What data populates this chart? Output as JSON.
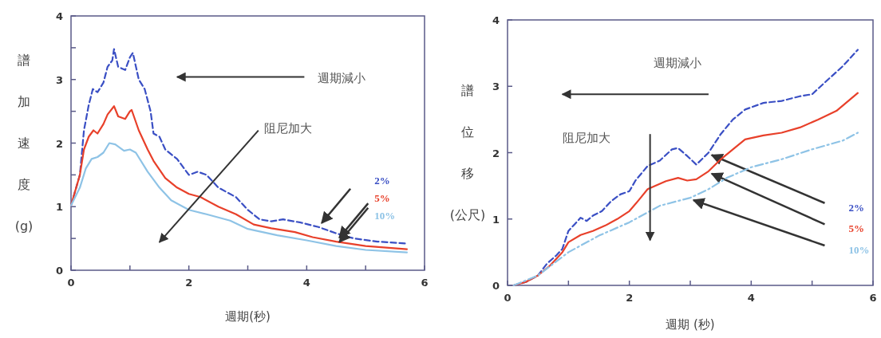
{
  "chart_data": [
    {
      "type": "line",
      "ylabel": "譜加速度(g)",
      "xlabel": "週期(秒)",
      "annotations": [
        "週期減小",
        "阻尼加大"
      ],
      "xlim": [
        0,
        6
      ],
      "ylim": [
        0,
        4
      ],
      "xticks": [
        0,
        {
          "value": 1,
          "label": null
        },
        2,
        {
          "value": 3,
          "label": null
        },
        4,
        {
          "value": 5,
          "label": null
        },
        6
      ],
      "yticks": [
        0,
        {
          "value": 0.5,
          "label": null
        },
        1,
        {
          "value": 1.5,
          "label": null
        },
        2,
        {
          "value": 2.5,
          "label": null
        },
        3,
        {
          "value": 3.5,
          "label": null
        },
        4
      ],
      "grid": false,
      "legend": false,
      "marker": "none",
      "series": [
        {
          "name": "2%",
          "color": "#3a4fc4",
          "line_style": "dashed",
          "x": [
            0,
            0.15,
            0.22,
            0.3,
            0.37,
            0.45,
            0.55,
            0.62,
            0.7,
            0.73,
            0.8,
            0.92,
            1.0,
            1.05,
            1.15,
            1.25,
            1.35,
            1.4,
            1.5,
            1.6,
            1.8,
            2.0,
            2.15,
            2.3,
            2.5,
            2.8,
            3.0,
            3.2,
            3.4,
            3.6,
            3.9,
            4.2,
            4.5,
            4.8,
            5.2,
            5.7
          ],
          "values": [
            1.02,
            1.5,
            2.2,
            2.6,
            2.85,
            2.8,
            2.95,
            3.2,
            3.3,
            3.48,
            3.2,
            3.15,
            3.35,
            3.42,
            3.0,
            2.85,
            2.5,
            2.15,
            2.1,
            1.9,
            1.75,
            1.5,
            1.55,
            1.5,
            1.3,
            1.15,
            0.95,
            0.8,
            0.77,
            0.8,
            0.75,
            0.68,
            0.58,
            0.5,
            0.45,
            0.42
          ]
        },
        {
          "name": "5%",
          "color": "#e8402a",
          "line_style": "solid",
          "x": [
            0,
            0.15,
            0.22,
            0.3,
            0.38,
            0.45,
            0.55,
            0.62,
            0.73,
            0.8,
            0.92,
            1.0,
            1.03,
            1.15,
            1.3,
            1.4,
            1.6,
            1.8,
            2.0,
            2.2,
            2.5,
            2.8,
            3.1,
            3.4,
            3.8,
            4.1,
            4.5,
            5.0,
            5.7
          ],
          "values": [
            1.02,
            1.5,
            1.9,
            2.1,
            2.2,
            2.15,
            2.3,
            2.45,
            2.58,
            2.42,
            2.38,
            2.5,
            2.52,
            2.2,
            1.9,
            1.72,
            1.45,
            1.3,
            1.2,
            1.15,
            1.0,
            0.88,
            0.72,
            0.66,
            0.6,
            0.52,
            0.45,
            0.38,
            0.33
          ]
        },
        {
          "name": "10%",
          "color": "#8ec3e6",
          "line_style": "solid",
          "x": [
            0,
            0.15,
            0.25,
            0.35,
            0.45,
            0.55,
            0.65,
            0.75,
            0.9,
            1.0,
            1.1,
            1.3,
            1.5,
            1.7,
            2.0,
            2.3,
            2.7,
            3.0,
            3.5,
            4.0,
            4.5,
            5.0,
            5.7
          ],
          "values": [
            1.02,
            1.3,
            1.6,
            1.75,
            1.78,
            1.85,
            2.0,
            1.98,
            1.88,
            1.9,
            1.85,
            1.55,
            1.3,
            1.1,
            0.95,
            0.88,
            0.78,
            0.65,
            0.55,
            0.47,
            0.38,
            0.32,
            0.28
          ]
        }
      ]
    },
    {
      "type": "line",
      "ylabel": "譜位移(公尺)",
      "xlabel": "週期 (秒)",
      "annotations": [
        "週期減小",
        "阻尼加大"
      ],
      "xlim": [
        0,
        6
      ],
      "ylim": [
        0,
        4
      ],
      "xticks": [
        0,
        {
          "value": 1,
          "label": null
        },
        2,
        {
          "value": 3,
          "label": null
        },
        4,
        {
          "value": 5,
          "label": null
        },
        6
      ],
      "yticks": [
        0,
        1,
        2,
        3,
        4
      ],
      "grid": false,
      "legend": false,
      "marker": "none",
      "series": [
        {
          "name": "2%",
          "color": "#3a4fc4",
          "line_style": "dashed",
          "x": [
            0.1,
            0.3,
            0.5,
            0.65,
            0.8,
            0.9,
            1.0,
            1.1,
            1.2,
            1.3,
            1.4,
            1.55,
            1.7,
            1.85,
            2.0,
            2.1,
            2.3,
            2.5,
            2.7,
            2.8,
            2.95,
            3.1,
            3.3,
            3.5,
            3.7,
            3.9,
            4.2,
            4.5,
            4.8,
            5.0,
            5.2,
            5.5,
            5.75
          ],
          "values": [
            0,
            0.05,
            0.15,
            0.33,
            0.45,
            0.55,
            0.82,
            0.92,
            1.02,
            0.97,
            1.05,
            1.12,
            1.27,
            1.37,
            1.42,
            1.58,
            1.8,
            1.88,
            2.05,
            2.07,
            1.95,
            1.82,
            2.0,
            2.28,
            2.5,
            2.65,
            2.75,
            2.78,
            2.85,
            2.88,
            3.05,
            3.3,
            3.55
          ]
        },
        {
          "name": "5%",
          "color": "#e8402a",
          "line_style": "solid",
          "x": [
            0.1,
            0.3,
            0.5,
            0.7,
            0.9,
            1.0,
            1.2,
            1.4,
            1.6,
            1.8,
            2.0,
            2.15,
            2.3,
            2.6,
            2.8,
            2.95,
            3.1,
            3.3,
            3.5,
            3.7,
            3.9,
            4.2,
            4.5,
            4.8,
            5.1,
            5.4,
            5.75
          ],
          "values": [
            0,
            0.05,
            0.15,
            0.3,
            0.5,
            0.65,
            0.76,
            0.82,
            0.9,
            1.0,
            1.12,
            1.28,
            1.45,
            1.57,
            1.62,
            1.58,
            1.6,
            1.72,
            1.9,
            2.05,
            2.2,
            2.26,
            2.3,
            2.38,
            2.5,
            2.63,
            2.9
          ]
        },
        {
          "name": "10%",
          "color": "#8ec3e6",
          "line_style": "dashdot",
          "x": [
            0.1,
            0.5,
            1.0,
            1.5,
            2.0,
            2.5,
            3.0,
            3.3,
            3.6,
            4.0,
            4.5,
            5.0,
            5.5,
            5.75
          ],
          "values": [
            0,
            0.15,
            0.5,
            0.75,
            0.95,
            1.2,
            1.32,
            1.45,
            1.62,
            1.78,
            1.9,
            2.05,
            2.18,
            2.3
          ]
        }
      ]
    }
  ]
}
